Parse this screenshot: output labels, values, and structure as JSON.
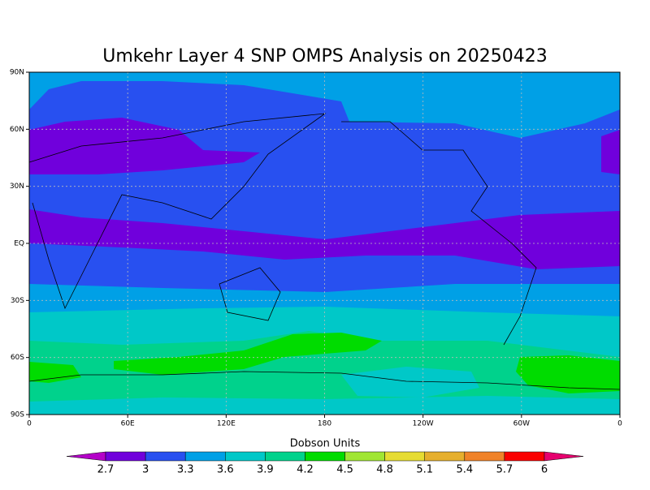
{
  "title": "Umkehr Layer 4 SNP OMPS Analysis on 20250423",
  "x_ticks": [
    "0",
    "60E",
    "120E",
    "180",
    "120W",
    "60W",
    "0"
  ],
  "y_ticks": [
    "90N",
    "60N",
    "30N",
    "EQ",
    "30S",
    "60S",
    "90S"
  ],
  "colorbar": {
    "title": "Dobson Units",
    "levels": [
      2.7,
      3,
      3.3,
      3.6,
      3.9,
      4.2,
      4.5,
      4.8,
      5.1,
      5.4,
      5.7,
      6
    ],
    "colors": [
      "#b400c8",
      "#7000dc",
      "#2850f0",
      "#00a0e6",
      "#00c8c8",
      "#00d28c",
      "#00dc00",
      "#a0e632",
      "#e6dc32",
      "#e6af2d",
      "#f08228",
      "#fa0000",
      "#e6006e"
    ]
  }
}
